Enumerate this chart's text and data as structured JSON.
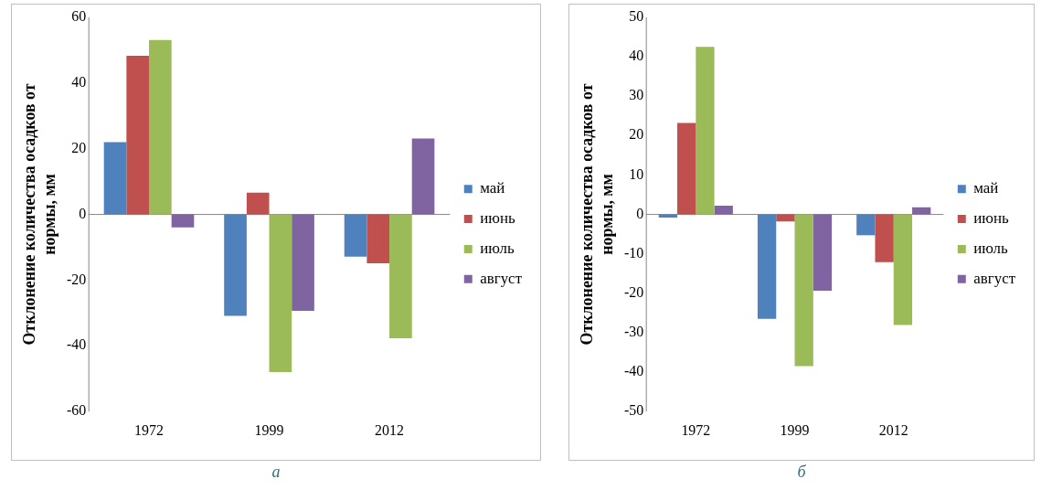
{
  "chart_data": [
    {
      "type": "bar",
      "ylabel": "Отклонение количества осадков от нормы, мм",
      "categories": [
        "1972",
        "1999",
        "2012"
      ],
      "series": [
        {
          "name": "май",
          "color": "#4f81bd",
          "values": [
            22,
            -30.9,
            -12.9
          ]
        },
        {
          "name": "июнь",
          "color": "#c0504d",
          "values": [
            48.3,
            6.6,
            -14.9
          ]
        },
        {
          "name": "июль",
          "color": "#9bbb59",
          "values": [
            53.1,
            -48,
            -37.7
          ]
        },
        {
          "name": "август",
          "color": "#8064a2",
          "values": [
            -4,
            -29.4,
            23.1
          ]
        }
      ],
      "ylim": [
        -60,
        60
      ],
      "yticks": [
        -60,
        -40,
        -20,
        0,
        20,
        40,
        60
      ],
      "legend": "right",
      "annotations": [
        "а"
      ]
    },
    {
      "type": "bar",
      "ylabel": "Отклонение количества осадков от нормы, мм",
      "categories": [
        "1972",
        "1999",
        "2012"
      ],
      "series": [
        {
          "name": "май",
          "color": "#4f81bd",
          "values": [
            -0.8,
            -26.5,
            -5.3
          ]
        },
        {
          "name": "июнь",
          "color": "#c0504d",
          "values": [
            23.2,
            -1.8,
            -12.1
          ]
        },
        {
          "name": "июль",
          "color": "#9bbb59",
          "values": [
            42.5,
            -38.5,
            -28.1
          ]
        },
        {
          "name": "август",
          "color": "#8064a2",
          "values": [
            2.2,
            -19.4,
            1.8
          ]
        }
      ],
      "ylim": [
        -50,
        50
      ],
      "yticks": [
        -50,
        -40,
        -30,
        -20,
        -10,
        0,
        10,
        20,
        30,
        40,
        50
      ],
      "legend": "right",
      "annotations": [
        "б"
      ]
    }
  ]
}
